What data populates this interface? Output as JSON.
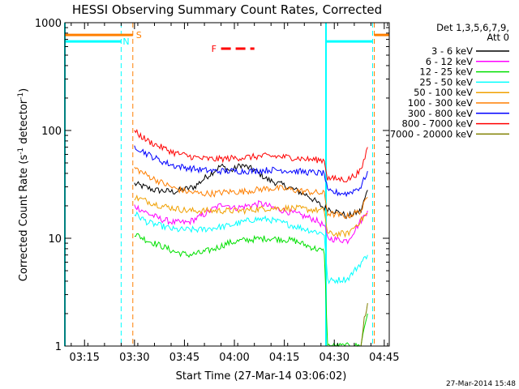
{
  "chart_data": {
    "type": "line",
    "title": "HESSI Observing Summary Count Rates, Corrected",
    "xlabel": "Start Time (27-Mar-14 03:06:02)",
    "ylabel_main": "Corrected Count Rate (s",
    "ylabel_sup1": "-1",
    "ylabel_mid": " detector",
    "ylabel_sup2": "-1",
    "ylabel_end": ")",
    "y_scale": "log",
    "ylim": [
      1,
      1000
    ],
    "xlim_minutes": [
      3.1,
      100.5
    ],
    "x_ticks_minutes": [
      9,
      24,
      39,
      54,
      69,
      84,
      99
    ],
    "x_tick_labels": [
      "03:15",
      "03:30",
      "03:45",
      "04:00",
      "04:15",
      "04:30",
      "04:45"
    ],
    "y_ticks": [
      1,
      10,
      100,
      1000
    ],
    "y_tick_labels": [
      "1",
      "10",
      "100",
      "1000"
    ],
    "legend": {
      "header_line1": "Det 1,3,5,6,7,9,",
      "header_line2": "Att 0",
      "position": "right"
    },
    "series": [
      {
        "name": "3 - 6 keV",
        "color": "#000000",
        "points": [
          [
            24,
            32
          ],
          [
            30,
            28
          ],
          [
            36,
            27
          ],
          [
            42,
            30
          ],
          [
            46,
            38
          ],
          [
            50,
            47
          ],
          [
            53,
            42
          ],
          [
            56,
            48
          ],
          [
            60,
            43
          ],
          [
            64,
            35
          ],
          [
            70,
            30
          ],
          [
            76,
            25
          ],
          [
            81,
            19
          ],
          [
            82,
            19
          ],
          [
            86,
            17
          ],
          [
            88,
            16
          ],
          [
            92,
            18
          ],
          [
            94,
            28
          ]
        ]
      },
      {
        "name": "6 - 12 keV",
        "color": "#ff00ff",
        "points": [
          [
            24,
            20
          ],
          [
            28,
            17
          ],
          [
            32,
            15
          ],
          [
            36,
            14
          ],
          [
            40,
            14
          ],
          [
            44,
            16
          ],
          [
            48,
            19
          ],
          [
            51,
            21
          ],
          [
            54,
            19
          ],
          [
            58,
            20
          ],
          [
            62,
            21
          ],
          [
            66,
            19
          ],
          [
            72,
            17
          ],
          [
            78,
            15
          ],
          [
            81,
            13
          ],
          [
            82,
            10
          ],
          [
            88,
            9.5
          ],
          [
            94,
            18
          ]
        ]
      },
      {
        "name": "12 - 25 keV",
        "color": "#00e000",
        "points": [
          [
            24,
            11
          ],
          [
            28,
            9.5
          ],
          [
            32,
            8.5
          ],
          [
            36,
            7.5
          ],
          [
            40,
            7
          ],
          [
            44,
            7.3
          ],
          [
            48,
            8
          ],
          [
            52,
            9
          ],
          [
            56,
            9.5
          ],
          [
            60,
            9.8
          ],
          [
            64,
            10
          ],
          [
            68,
            9.8
          ],
          [
            72,
            9.5
          ],
          [
            76,
            8.5
          ],
          [
            81,
            7.5
          ],
          [
            82,
            1
          ],
          [
            92,
            1
          ],
          [
            93,
            1.5
          ],
          [
            94,
            2
          ]
        ]
      },
      {
        "name": "25 - 50 keV",
        "color": "#00ffff",
        "points": [
          [
            24,
            17
          ],
          [
            28,
            14
          ],
          [
            32,
            13
          ],
          [
            36,
            12
          ],
          [
            40,
            12
          ],
          [
            44,
            12
          ],
          [
            48,
            12.5
          ],
          [
            52,
            13
          ],
          [
            56,
            14
          ],
          [
            60,
            15
          ],
          [
            64,
            15
          ],
          [
            68,
            14
          ],
          [
            72,
            13
          ],
          [
            76,
            12
          ],
          [
            81,
            11
          ],
          [
            82,
            4
          ],
          [
            88,
            4.2
          ],
          [
            94,
            7
          ]
        ]
      },
      {
        "name": "50 - 100 keV",
        "color": "#f0a000",
        "points": [
          [
            24,
            24
          ],
          [
            28,
            22
          ],
          [
            32,
            20
          ],
          [
            36,
            19
          ],
          [
            40,
            18
          ],
          [
            44,
            18
          ],
          [
            48,
            18
          ],
          [
            52,
            18
          ],
          [
            56,
            18
          ],
          [
            60,
            18.5
          ],
          [
            64,
            19
          ],
          [
            68,
            19
          ],
          [
            72,
            19
          ],
          [
            76,
            18.5
          ],
          [
            81,
            18
          ],
          [
            82,
            11
          ],
          [
            88,
            11
          ],
          [
            94,
            17
          ]
        ]
      },
      {
        "name": "100 - 300 keV",
        "color": "#ff7f00",
        "points": [
          [
            24,
            45
          ],
          [
            28,
            38
          ],
          [
            32,
            33
          ],
          [
            36,
            29
          ],
          [
            40,
            27
          ],
          [
            44,
            26
          ],
          [
            48,
            26
          ],
          [
            52,
            27
          ],
          [
            56,
            27
          ],
          [
            60,
            28
          ],
          [
            64,
            29
          ],
          [
            68,
            29
          ],
          [
            72,
            28
          ],
          [
            76,
            27
          ],
          [
            81,
            26
          ],
          [
            82,
            17
          ],
          [
            88,
            16
          ],
          [
            92,
            18
          ],
          [
            94,
            24
          ]
        ]
      },
      {
        "name": "300 - 800 keV",
        "color": "#0000ff",
        "points": [
          [
            24,
            72
          ],
          [
            28,
            60
          ],
          [
            32,
            52
          ],
          [
            36,
            47
          ],
          [
            40,
            45
          ],
          [
            44,
            43
          ],
          [
            48,
            42
          ],
          [
            52,
            42
          ],
          [
            56,
            42
          ],
          [
            60,
            42
          ],
          [
            64,
            43
          ],
          [
            68,
            43
          ],
          [
            72,
            42
          ],
          [
            76,
            41
          ],
          [
            81,
            40
          ],
          [
            82,
            27
          ],
          [
            88,
            26
          ],
          [
            92,
            30
          ],
          [
            94,
            42
          ]
        ]
      },
      {
        "name": "800 - 7000 keV",
        "color": "#ff0000",
        "points": [
          [
            24,
            98
          ],
          [
            28,
            80
          ],
          [
            32,
            70
          ],
          [
            36,
            62
          ],
          [
            40,
            58
          ],
          [
            44,
            55
          ],
          [
            48,
            54
          ],
          [
            52,
            55
          ],
          [
            56,
            56
          ],
          [
            60,
            57
          ],
          [
            64,
            58
          ],
          [
            68,
            57
          ],
          [
            72,
            56
          ],
          [
            76,
            54
          ],
          [
            81,
            53
          ],
          [
            82,
            36
          ],
          [
            88,
            35
          ],
          [
            92,
            42
          ],
          [
            94,
            70
          ]
        ]
      },
      {
        "name": "7000 - 20000 keV",
        "color": "#808000",
        "points": [
          [
            92,
            1
          ],
          [
            93,
            1.8
          ],
          [
            94,
            2.5
          ]
        ]
      }
    ],
    "annotations": {
      "S_label": "S",
      "N_label": "N",
      "F_label": "F",
      "S_level": 770,
      "N_level": 670,
      "F_level": 575,
      "S_ranges_minutes": [
        [
          3.1,
          23.5
        ],
        [
          96,
          100.5
        ]
      ],
      "N_ranges_minutes": [
        [
          3.1,
          20
        ],
        [
          81.5,
          95.5
        ]
      ],
      "F_range_minutes": [
        50,
        60
      ],
      "orange_dashed_minutes": [
        23.5,
        96
      ],
      "cyan_dashed_minutes": [
        20,
        95.5
      ],
      "cyan_solid_minutes": [
        3.1,
        81.5
      ]
    },
    "colors": {
      "S": "#ff7f00",
      "N": "#00ffff",
      "F": "#ff0000"
    },
    "timestamp": "27-Mar-2014 15:48"
  }
}
